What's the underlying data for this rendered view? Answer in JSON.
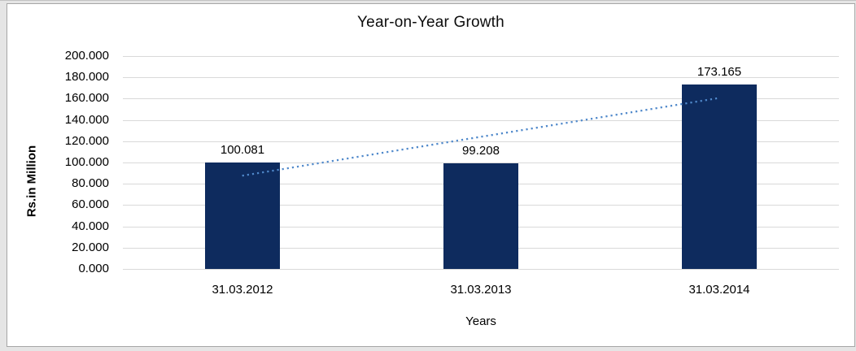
{
  "chart_data": {
    "type": "bar",
    "title": "Year-on-Year Growth",
    "xlabel": "Years",
    "ylabel": "Rs.in Million",
    "categories": [
      "31.03.2012",
      "31.03.2013",
      "31.03.2014"
    ],
    "values": [
      100.081,
      99.208,
      173.165
    ],
    "data_labels": [
      "100.081",
      "99.208",
      "173.165"
    ],
    "ylim": [
      0,
      200
    ],
    "ytick_step": 20,
    "ytick_labels": [
      "200.000",
      "180.000",
      "160.000",
      "140.000",
      "120.000",
      "100.000",
      "80.000",
      "60.000",
      "40.000",
      "20.000",
      "0.000"
    ],
    "grid": true,
    "legend": "none",
    "trendline": {
      "type": "linear",
      "style": "dotted",
      "start_value": 87.61,
      "end_value": 160.69
    }
  },
  "colors": {
    "bar": "#0E2B5E",
    "trendline": "#5089CB",
    "gridline": "#D9D9D9",
    "panel_border": "#A6A6A6",
    "panel_bg": "#FFFFFF",
    "outer_bg": "#E5E5E5",
    "text": "#000000"
  }
}
